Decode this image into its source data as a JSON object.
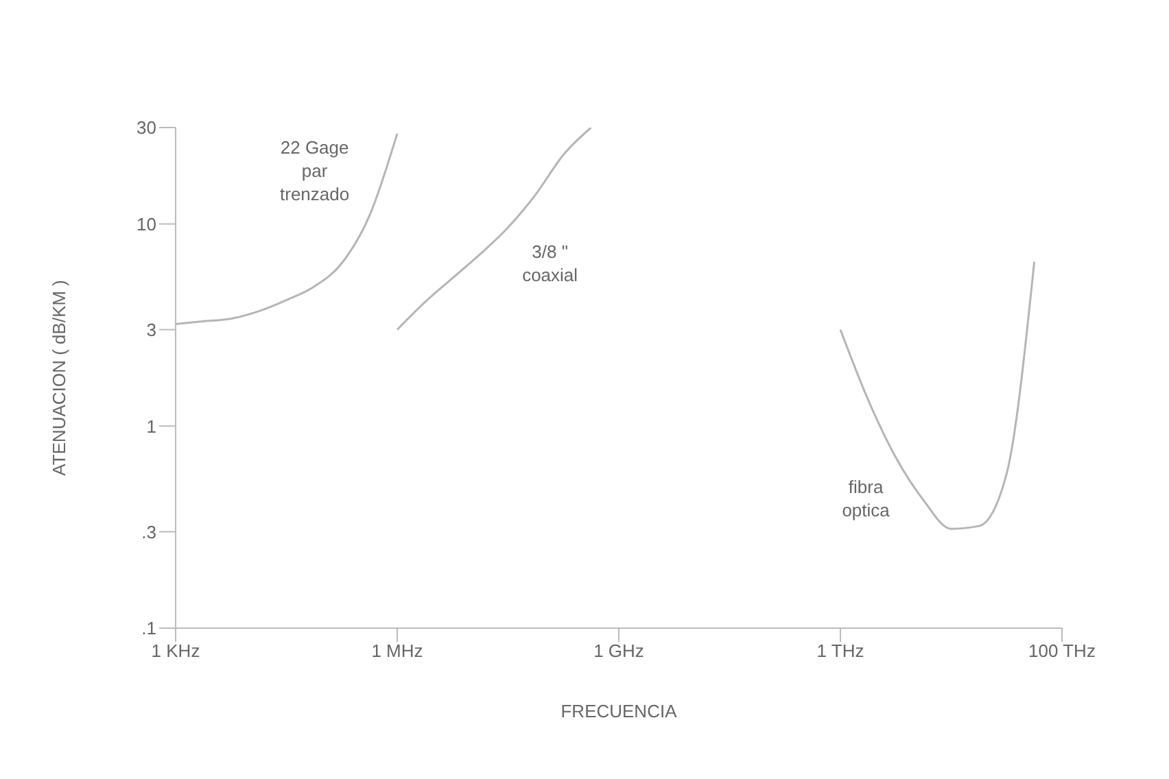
{
  "chart_data": {
    "type": "line",
    "xlabel": "FRECUENCIA",
    "ylabel": "ATENUACION ( dB/KM )",
    "log": "y",
    "marker": "none",
    "categories": [
      "1 KHz",
      null,
      null,
      null,
      null,
      null,
      null,
      null,
      "1 MHz",
      null,
      null,
      null,
      null,
      null,
      null,
      null,
      "1 GHz",
      null,
      null,
      null,
      null,
      null,
      null,
      null,
      "1 THz",
      null,
      null,
      null,
      null,
      null,
      null,
      null,
      "100 THz"
    ],
    "ylim": [
      0.1,
      30
    ],
    "yticks": [
      {
        "value": 0.1,
        "label": ".1"
      },
      {
        "value": 0.3,
        "label": ".3"
      },
      1,
      3,
      10,
      30
    ],
    "series": [
      {
        "name": "22 Gage\npar\ntrenzado",
        "color": "#b5b5b5",
        "values": [
          3.2,
          3.3,
          3.4,
          3.7,
          4.2,
          4.9,
          6.4,
          11,
          28,
          null,
          null,
          null,
          null,
          null,
          null,
          null,
          null,
          null,
          null,
          null,
          null,
          null,
          null,
          null,
          null,
          null,
          null,
          null,
          null,
          null,
          null,
          null,
          null
        ]
      },
      {
        "name": "3/8 \"\ncoaxial",
        "color": "#b5b5b5",
        "values": [
          null,
          null,
          null,
          null,
          null,
          null,
          null,
          null,
          3,
          4.1,
          5.4,
          7.1,
          9.6,
          14,
          22,
          30,
          null,
          null,
          null,
          null,
          null,
          null,
          null,
          null,
          null,
          null,
          null,
          null,
          null,
          null,
          null,
          null,
          null
        ]
      },
      {
        "name": "fibra\noptica",
        "color": "#b5b5b5",
        "values": [
          null,
          null,
          null,
          null,
          null,
          null,
          null,
          null,
          null,
          null,
          null,
          null,
          null,
          null,
          null,
          null,
          null,
          null,
          null,
          null,
          null,
          null,
          null,
          null,
          3,
          1.35,
          0.7,
          0.43,
          0.31,
          0.32,
          0.58,
          6.5,
          null
        ]
      }
    ]
  }
}
